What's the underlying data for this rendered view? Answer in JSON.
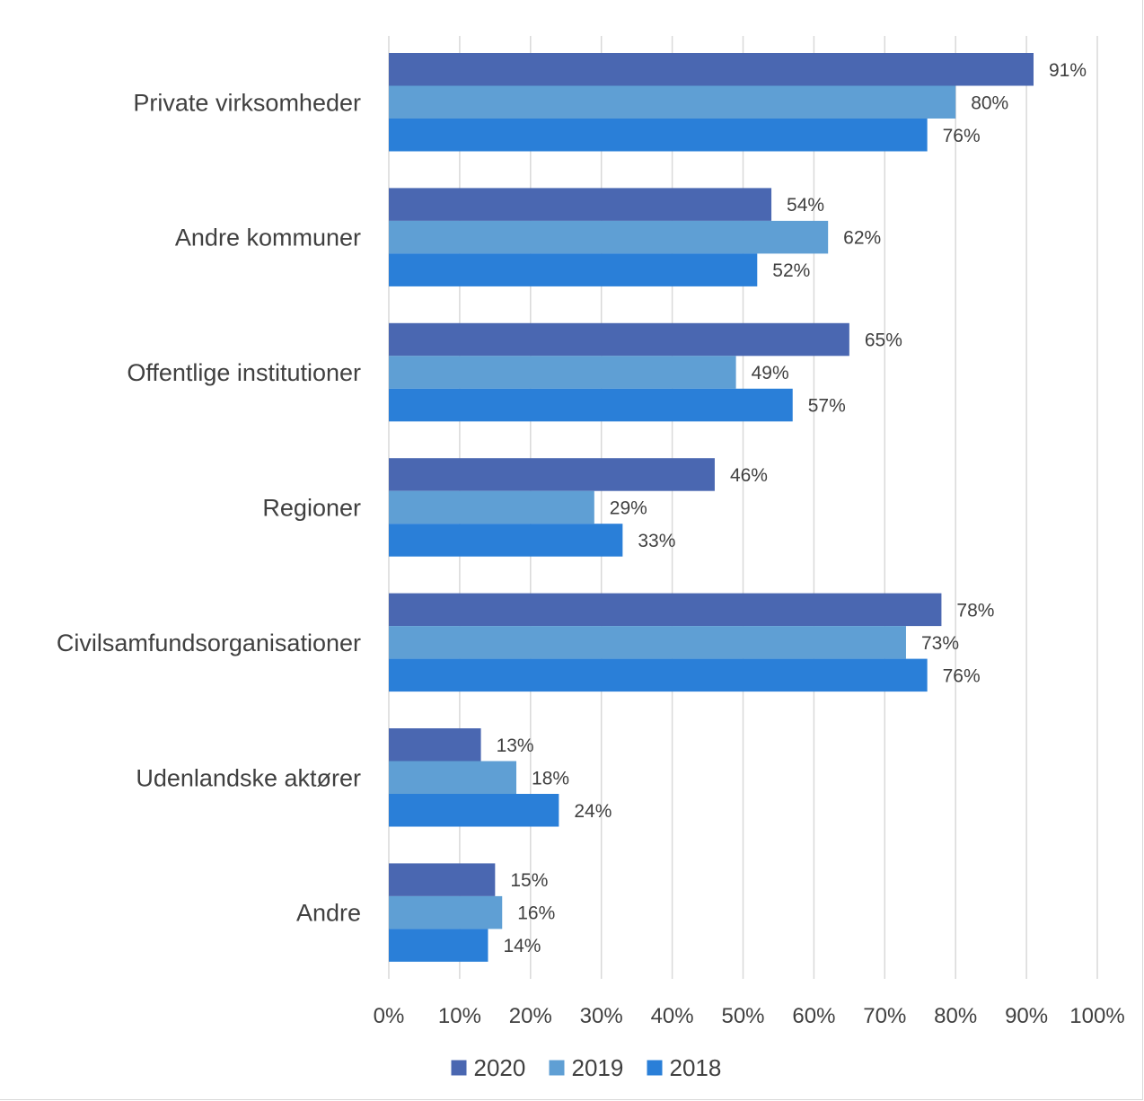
{
  "chart_data": {
    "type": "bar",
    "orientation": "horizontal",
    "categories": [
      "Private virksomheder",
      "Andre kommuner",
      "Offentlige institutioner",
      "Regioner",
      "Civilsamfundsorganisationer",
      "Udenlandske aktører",
      "Andre"
    ],
    "series": [
      {
        "name": "2020",
        "color": "#4a67b1",
        "values": [
          91,
          54,
          65,
          46,
          78,
          13,
          15
        ],
        "labels": [
          "91%",
          "54%",
          "65%",
          "46%",
          "78%",
          "13%",
          "15%"
        ]
      },
      {
        "name": "2019",
        "color": "#5f9fd4",
        "values": [
          80,
          62,
          49,
          29,
          73,
          18,
          16
        ],
        "labels": [
          "80%",
          "62%",
          "49%",
          "29%",
          "73%",
          "18%",
          "16%"
        ]
      },
      {
        "name": "2018",
        "color": "#2a7fd8",
        "values": [
          76,
          52,
          57,
          33,
          76,
          24,
          14
        ],
        "labels": [
          "76%",
          "52%",
          "57%",
          "33%",
          "76%",
          "24%",
          "14%"
        ]
      }
    ],
    "x_ticks": [
      "0%",
      "10%",
      "20%",
      "30%",
      "40%",
      "50%",
      "60%",
      "70%",
      "80%",
      "90%",
      "100%"
    ],
    "xlim": [
      0,
      100
    ],
    "grid": "vertical",
    "legend_position": "bottom",
    "title": "",
    "xlabel": "",
    "ylabel": ""
  }
}
